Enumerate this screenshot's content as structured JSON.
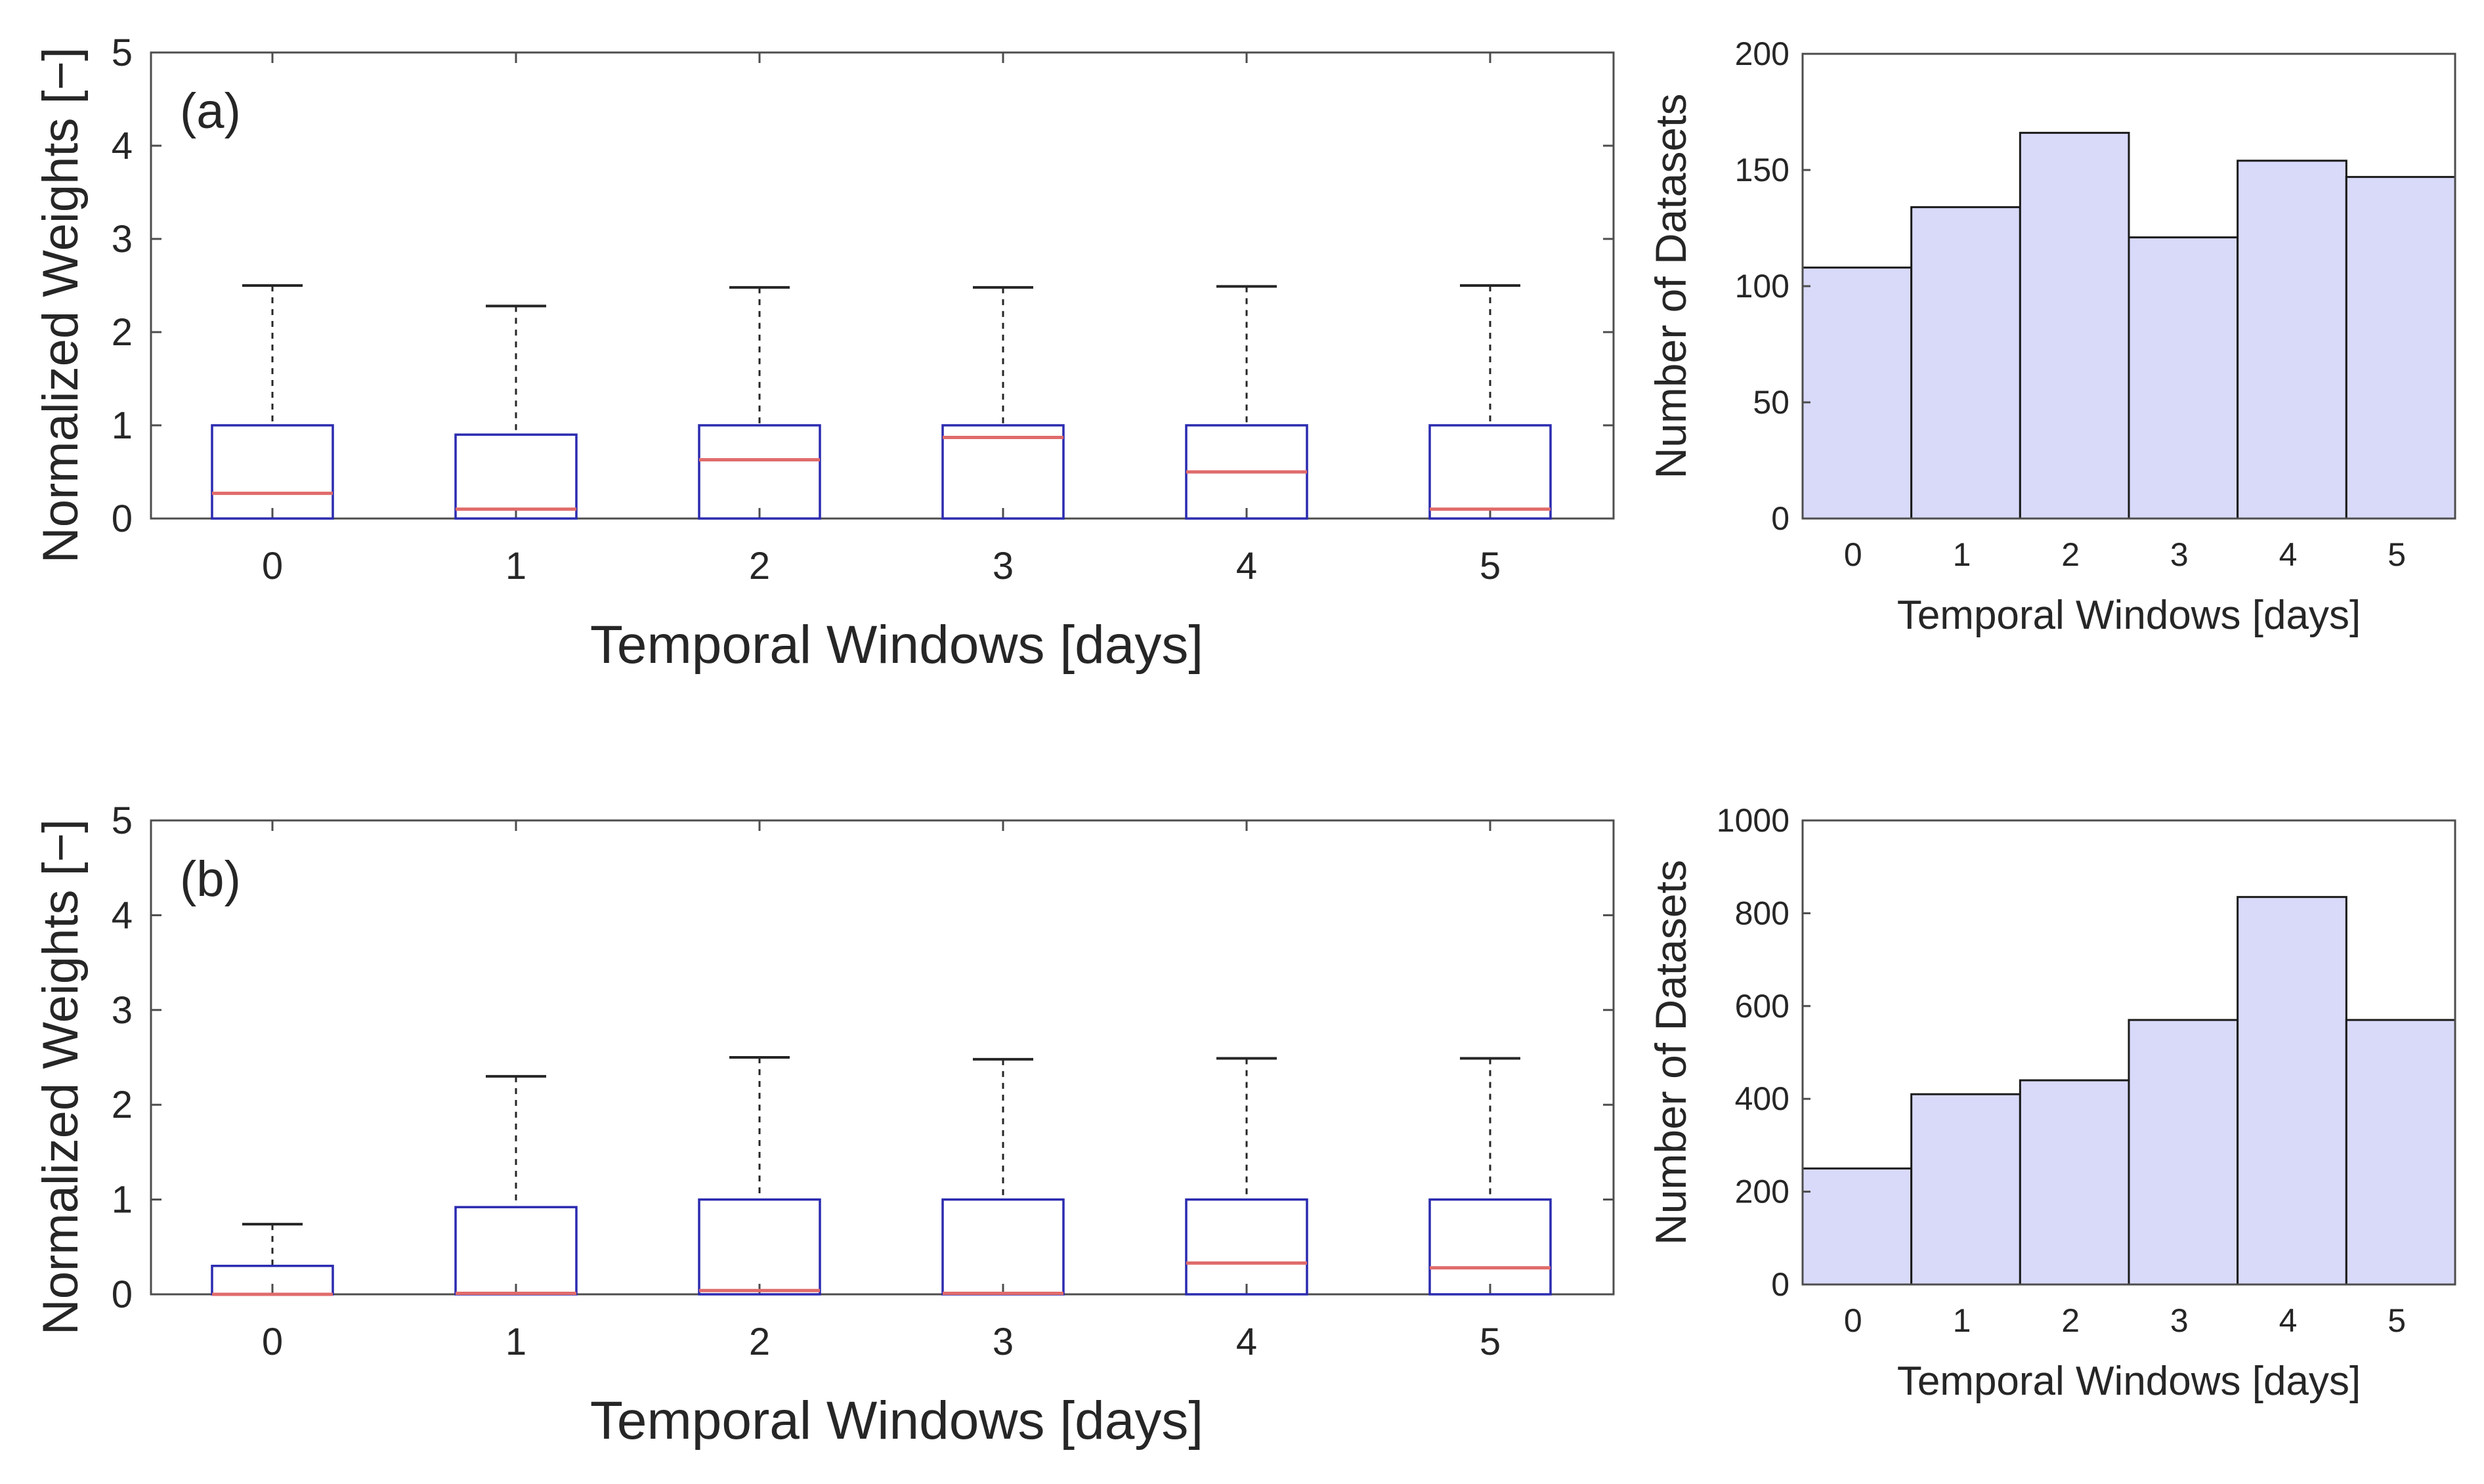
{
  "chart_data": [
    {
      "type": "box",
      "panel_label": "(a)",
      "xlabel": "Temporal Windows [days]",
      "ylabel": "Normalized Weights [−]",
      "ylim": [
        0,
        5
      ],
      "yticks": [
        "0",
        "1",
        "2",
        "3",
        "4",
        "5"
      ],
      "categories": [
        "0",
        "1",
        "2",
        "3",
        "4",
        "5"
      ],
      "boxes": [
        {
          "min": 0,
          "q1": 0,
          "median": 0.27,
          "q3": 1.0,
          "max": 2.5
        },
        {
          "min": 0,
          "q1": 0,
          "median": 0.1,
          "q3": 0.9,
          "max": 2.28
        },
        {
          "min": 0,
          "q1": 0,
          "median": 0.63,
          "q3": 1.0,
          "max": 2.48
        },
        {
          "min": 0,
          "q1": 0,
          "median": 0.87,
          "q3": 1.0,
          "max": 2.48
        },
        {
          "min": 0,
          "q1": 0,
          "median": 0.5,
          "q3": 1.0,
          "max": 2.49
        },
        {
          "min": 0,
          "q1": 0,
          "median": 0.1,
          "q3": 1.0,
          "max": 2.5
        }
      ]
    },
    {
      "type": "bar",
      "xlabel": "Temporal Windows [days]",
      "ylabel": "Number of Datasets",
      "ylim": [
        0,
        200
      ],
      "yticks": [
        "0",
        "50",
        "100",
        "150",
        "200"
      ],
      "categories": [
        "0",
        "1",
        "2",
        "3",
        "4",
        "5"
      ],
      "values": [
        108,
        134,
        166,
        121,
        154,
        147
      ]
    },
    {
      "type": "box",
      "panel_label": "(b)",
      "xlabel": "Temporal Windows [days]",
      "ylabel": "Normalized Weights [−]",
      "ylim": [
        0,
        5
      ],
      "yticks": [
        "0",
        "1",
        "2",
        "3",
        "4",
        "5"
      ],
      "categories": [
        "0",
        "1",
        "2",
        "3",
        "4",
        "5"
      ],
      "boxes": [
        {
          "min": 0,
          "q1": 0,
          "median": 0.0,
          "q3": 0.3,
          "max": 0.74
        },
        {
          "min": 0,
          "q1": 0,
          "median": 0.01,
          "q3": 0.92,
          "max": 2.3
        },
        {
          "min": 0,
          "q1": 0,
          "median": 0.04,
          "q3": 1.0,
          "max": 2.5
        },
        {
          "min": 0,
          "q1": 0,
          "median": 0.01,
          "q3": 1.0,
          "max": 2.48
        },
        {
          "min": 0,
          "q1": 0,
          "median": 0.33,
          "q3": 1.0,
          "max": 2.49
        },
        {
          "min": 0,
          "q1": 0,
          "median": 0.28,
          "q3": 1.0,
          "max": 2.49
        }
      ]
    },
    {
      "type": "bar",
      "xlabel": "Temporal Windows [days]",
      "ylabel": "Number of Datasets",
      "ylim": [
        0,
        1000
      ],
      "yticks": [
        "0",
        "200",
        "400",
        "600",
        "800",
        "1000"
      ],
      "categories": [
        "0",
        "1",
        "2",
        "3",
        "4",
        "5"
      ],
      "values": [
        250,
        410,
        440,
        570,
        835,
        570
      ]
    }
  ]
}
